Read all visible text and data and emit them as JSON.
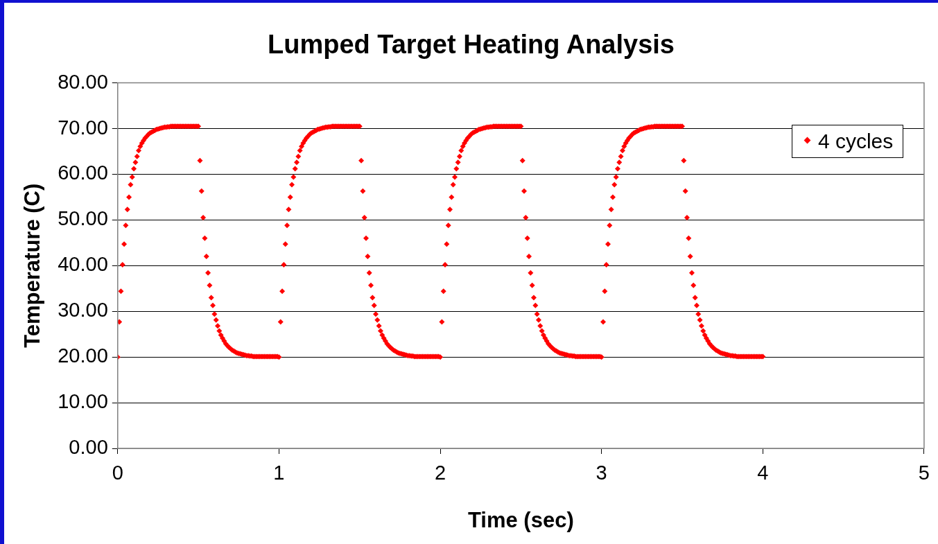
{
  "chart_data": {
    "type": "scatter",
    "title": "Lumped Target Heating Analysis",
    "xlabel": "Time (sec)",
    "ylabel": "Temperature (C)",
    "xlim": [
      0,
      5
    ],
    "xticks": [
      0,
      1,
      2,
      3,
      4,
      5
    ],
    "ylim": [
      0,
      80
    ],
    "yticks": [
      {
        "value": 0,
        "label": "0.00"
      },
      {
        "value": 10,
        "label": "10.00"
      },
      {
        "value": 20,
        "label": "20.00"
      },
      {
        "value": 30,
        "label": "30.00"
      },
      {
        "value": 40,
        "label": "40.00"
      },
      {
        "value": 50,
        "label": "50.00"
      },
      {
        "value": 60,
        "label": "60.00"
      },
      {
        "value": 70,
        "label": "70.00"
      },
      {
        "value": 80,
        "label": "80.00"
      }
    ],
    "grid": "y",
    "legend": "top right",
    "marker": "diamond",
    "series": [
      {
        "name": "4 cycles",
        "color": "#ff0000",
        "x": [
          0,
          0.01,
          0.02,
          0.03,
          0.04,
          0.05,
          0.06,
          0.07,
          0.08,
          0.09,
          0.1,
          0.11,
          0.12,
          0.13,
          0.14,
          0.15,
          0.16,
          0.17,
          0.18,
          0.19,
          0.2,
          0.21,
          0.22,
          0.23,
          0.24,
          0.25,
          0.26,
          0.27,
          0.28,
          0.29,
          0.3,
          0.31,
          0.32,
          0.33,
          0.34,
          0.35,
          0.36,
          0.37,
          0.38,
          0.39,
          0.4,
          0.41,
          0.42,
          0.43,
          0.44,
          0.45,
          0.46,
          0.47,
          0.48,
          0.49,
          0.5,
          0.51,
          0.52,
          0.53,
          0.54,
          0.55,
          0.56,
          0.57,
          0.58,
          0.59,
          0.6,
          0.61,
          0.62,
          0.63,
          0.64,
          0.65,
          0.66,
          0.67,
          0.68,
          0.69,
          0.7,
          0.71,
          0.72,
          0.73,
          0.74,
          0.75,
          0.76,
          0.77,
          0.78,
          0.79,
          0.8,
          0.81,
          0.82,
          0.83,
          0.84,
          0.85,
          0.86,
          0.87,
          0.88,
          0.89,
          0.9,
          0.91,
          0.92,
          0.93,
          0.94,
          0.95,
          0.96,
          0.97,
          0.98,
          0.99,
          1,
          1.01,
          1.02,
          1.03,
          1.04,
          1.05,
          1.06,
          1.07,
          1.08,
          1.09,
          1.1,
          1.11,
          1.12,
          1.13,
          1.14,
          1.15,
          1.16,
          1.17,
          1.18,
          1.19,
          1.2,
          1.21,
          1.22,
          1.23,
          1.24,
          1.25,
          1.26,
          1.27,
          1.28,
          1.29,
          1.3,
          1.31,
          1.32,
          1.33,
          1.34,
          1.35,
          1.36,
          1.37,
          1.38,
          1.39,
          1.4,
          1.41,
          1.42,
          1.43,
          1.44,
          1.45,
          1.46,
          1.47,
          1.48,
          1.49,
          1.5,
          1.51,
          1.52,
          1.53,
          1.54,
          1.55,
          1.56,
          1.57,
          1.58,
          1.59,
          1.6,
          1.61,
          1.62,
          1.63,
          1.64,
          1.65,
          1.66,
          1.67,
          1.68,
          1.69,
          1.7,
          1.71,
          1.72,
          1.73,
          1.74,
          1.75,
          1.76,
          1.77,
          1.78,
          1.79,
          1.8,
          1.81,
          1.82,
          1.83,
          1.84,
          1.85,
          1.86,
          1.87,
          1.88,
          1.89,
          1.9,
          1.91,
          1.92,
          1.93,
          1.94,
          1.95,
          1.96,
          1.97,
          1.98,
          1.99,
          2,
          2.01,
          2.02,
          2.03,
          2.04,
          2.05,
          2.06,
          2.07,
          2.08,
          2.09,
          2.1,
          2.11,
          2.12,
          2.13,
          2.14,
          2.15,
          2.16,
          2.17,
          2.18,
          2.19,
          2.2,
          2.21,
          2.22,
          2.23,
          2.24,
          2.25,
          2.26,
          2.27,
          2.28,
          2.29,
          2.3,
          2.31,
          2.32,
          2.33,
          2.34,
          2.35,
          2.36,
          2.37,
          2.38,
          2.39,
          2.4,
          2.41,
          2.42,
          2.43,
          2.44,
          2.45,
          2.46,
          2.47,
          2.48,
          2.49,
          2.5,
          2.51,
          2.52,
          2.53,
          2.54,
          2.55,
          2.56,
          2.57,
          2.58,
          2.59,
          2.6,
          2.61,
          2.62,
          2.63,
          2.64,
          2.65,
          2.66,
          2.67,
          2.68,
          2.69,
          2.7,
          2.71,
          2.72,
          2.73,
          2.74,
          2.75,
          2.76,
          2.77,
          2.78,
          2.79,
          2.8,
          2.81,
          2.82,
          2.83,
          2.84,
          2.85,
          2.86,
          2.87,
          2.88,
          2.89,
          2.9,
          2.91,
          2.92,
          2.93,
          2.94,
          2.95,
          2.96,
          2.97,
          2.98,
          2.99,
          3,
          3.01,
          3.02,
          3.03,
          3.04,
          3.05,
          3.06,
          3.07,
          3.08,
          3.09,
          3.1,
          3.11,
          3.12,
          3.13,
          3.14,
          3.15,
          3.16,
          3.17,
          3.18,
          3.19,
          3.2,
          3.21,
          3.22,
          3.23,
          3.24,
          3.25,
          3.26,
          3.27,
          3.28,
          3.29,
          3.3,
          3.31,
          3.32,
          3.33,
          3.34,
          3.35,
          3.36,
          3.37,
          3.38,
          3.39,
          3.4,
          3.41,
          3.42,
          3.43,
          3.44,
          3.45,
          3.46,
          3.47,
          3.48,
          3.49,
          3.5,
          3.51,
          3.52,
          3.53,
          3.54,
          3.55,
          3.56,
          3.57,
          3.58,
          3.59,
          3.6,
          3.61,
          3.62,
          3.63,
          3.64,
          3.65,
          3.66,
          3.67,
          3.68,
          3.69,
          3.7,
          3.71,
          3.72,
          3.73,
          3.74,
          3.75,
          3.76,
          3.77,
          3.78,
          3.79,
          3.8,
          3.81,
          3.82,
          3.83,
          3.84,
          3.85,
          3.86,
          3.87,
          3.88,
          3.89,
          3.9,
          3.91,
          3.92,
          3.93,
          3.94,
          3.95,
          3.96,
          3.97,
          3.98,
          3.99,
          4
        ],
        "values": [
          20.0,
          27.7,
          34.4,
          40.2,
          44.7,
          48.8,
          52.3,
          55.0,
          57.7,
          59.4,
          61.2,
          62.6,
          63.9,
          65.2,
          66.1,
          66.8,
          67.4,
          67.9,
          68.3,
          68.7,
          69.0,
          69.2,
          69.4,
          69.6,
          69.8,
          69.9,
          70.0,
          70.1,
          70.2,
          70.3,
          70.3,
          70.4,
          70.4,
          70.5,
          70.5,
          70.5,
          70.5,
          70.5,
          70.5,
          70.5,
          70.5,
          70.5,
          70.5,
          70.5,
          70.5,
          70.5,
          70.5,
          70.5,
          70.5,
          70.5,
          70.5,
          63.0,
          56.3,
          50.5,
          46.0,
          42.0,
          38.4,
          35.7,
          33.0,
          31.3,
          29.4,
          28.1,
          26.8,
          25.7,
          24.8,
          24.1,
          23.5,
          22.9,
          22.5,
          22.1,
          21.8,
          21.5,
          21.3,
          21.1,
          20.9,
          20.8,
          20.7,
          20.6,
          20.5,
          20.4,
          20.3,
          20.3,
          20.2,
          20.2,
          20.1,
          20.1,
          20.1,
          20.1,
          20.1,
          20.1,
          20.1,
          20.1,
          20.1,
          20.1,
          20.1,
          20.1,
          20.1,
          20.1,
          20.1,
          20.1,
          20.0,
          27.7,
          34.4,
          40.2,
          44.7,
          48.8,
          52.3,
          55.0,
          57.7,
          59.4,
          61.2,
          62.6,
          63.9,
          65.2,
          66.1,
          66.8,
          67.4,
          67.9,
          68.3,
          68.7,
          69.0,
          69.2,
          69.4,
          69.6,
          69.8,
          69.9,
          70.0,
          70.1,
          70.2,
          70.3,
          70.3,
          70.4,
          70.4,
          70.5,
          70.5,
          70.5,
          70.5,
          70.5,
          70.5,
          70.5,
          70.5,
          70.5,
          70.5,
          70.5,
          70.5,
          70.5,
          70.5,
          70.5,
          70.5,
          70.5,
          70.5,
          63.0,
          56.3,
          50.5,
          46.0,
          42.0,
          38.4,
          35.7,
          33.0,
          31.3,
          29.4,
          28.1,
          26.8,
          25.7,
          24.8,
          24.1,
          23.5,
          22.9,
          22.5,
          22.1,
          21.8,
          21.5,
          21.3,
          21.1,
          20.9,
          20.8,
          20.7,
          20.6,
          20.5,
          20.4,
          20.3,
          20.3,
          20.2,
          20.2,
          20.1,
          20.1,
          20.1,
          20.1,
          20.1,
          20.1,
          20.1,
          20.1,
          20.1,
          20.1,
          20.1,
          20.1,
          20.1,
          20.1,
          20.1,
          20.1,
          20.0,
          27.7,
          34.4,
          40.2,
          44.7,
          48.8,
          52.3,
          55.0,
          57.7,
          59.4,
          61.2,
          62.6,
          63.9,
          65.2,
          66.1,
          66.8,
          67.4,
          67.9,
          68.3,
          68.7,
          69.0,
          69.2,
          69.4,
          69.6,
          69.8,
          69.9,
          70.0,
          70.1,
          70.2,
          70.3,
          70.3,
          70.4,
          70.4,
          70.5,
          70.5,
          70.5,
          70.5,
          70.5,
          70.5,
          70.5,
          70.5,
          70.5,
          70.5,
          70.5,
          70.5,
          70.5,
          70.5,
          70.5,
          70.5,
          70.5,
          70.5,
          63.0,
          56.3,
          50.5,
          46.0,
          42.0,
          38.4,
          35.7,
          33.0,
          31.3,
          29.4,
          28.1,
          26.8,
          25.7,
          24.8,
          24.1,
          23.5,
          22.9,
          22.5,
          22.1,
          21.8,
          21.5,
          21.3,
          21.1,
          20.9,
          20.8,
          20.7,
          20.6,
          20.5,
          20.4,
          20.3,
          20.3,
          20.2,
          20.2,
          20.1,
          20.1,
          20.1,
          20.1,
          20.1,
          20.1,
          20.1,
          20.1,
          20.1,
          20.1,
          20.1,
          20.1,
          20.1,
          20.1,
          20.1,
          20.1,
          20.0,
          27.7,
          34.4,
          40.2,
          44.7,
          48.8,
          52.3,
          55.0,
          57.7,
          59.4,
          61.2,
          62.6,
          63.9,
          65.2,
          66.1,
          66.8,
          67.4,
          67.9,
          68.3,
          68.7,
          69.0,
          69.2,
          69.4,
          69.6,
          69.8,
          69.9,
          70.0,
          70.1,
          70.2,
          70.3,
          70.3,
          70.4,
          70.4,
          70.5,
          70.5,
          70.5,
          70.5,
          70.5,
          70.5,
          70.5,
          70.5,
          70.5,
          70.5,
          70.5,
          70.5,
          70.5,
          70.5,
          70.5,
          70.5,
          70.5,
          70.5,
          63.0,
          56.3,
          50.5,
          46.0,
          42.0,
          38.4,
          35.7,
          33.0,
          31.3,
          29.4,
          28.1,
          26.8,
          25.7,
          24.8,
          24.1,
          23.5,
          22.9,
          22.5,
          22.1,
          21.8,
          21.5,
          21.3,
          21.1,
          20.9,
          20.8,
          20.7,
          20.6,
          20.5,
          20.4,
          20.3,
          20.3,
          20.2,
          20.2,
          20.1,
          20.1,
          20.1,
          20.1,
          20.1,
          20.1,
          20.1,
          20.1,
          20.1,
          20.1,
          20.1,
          20.1,
          20.1,
          20.1,
          20.1,
          20.1,
          20.1
        ]
      }
    ]
  }
}
